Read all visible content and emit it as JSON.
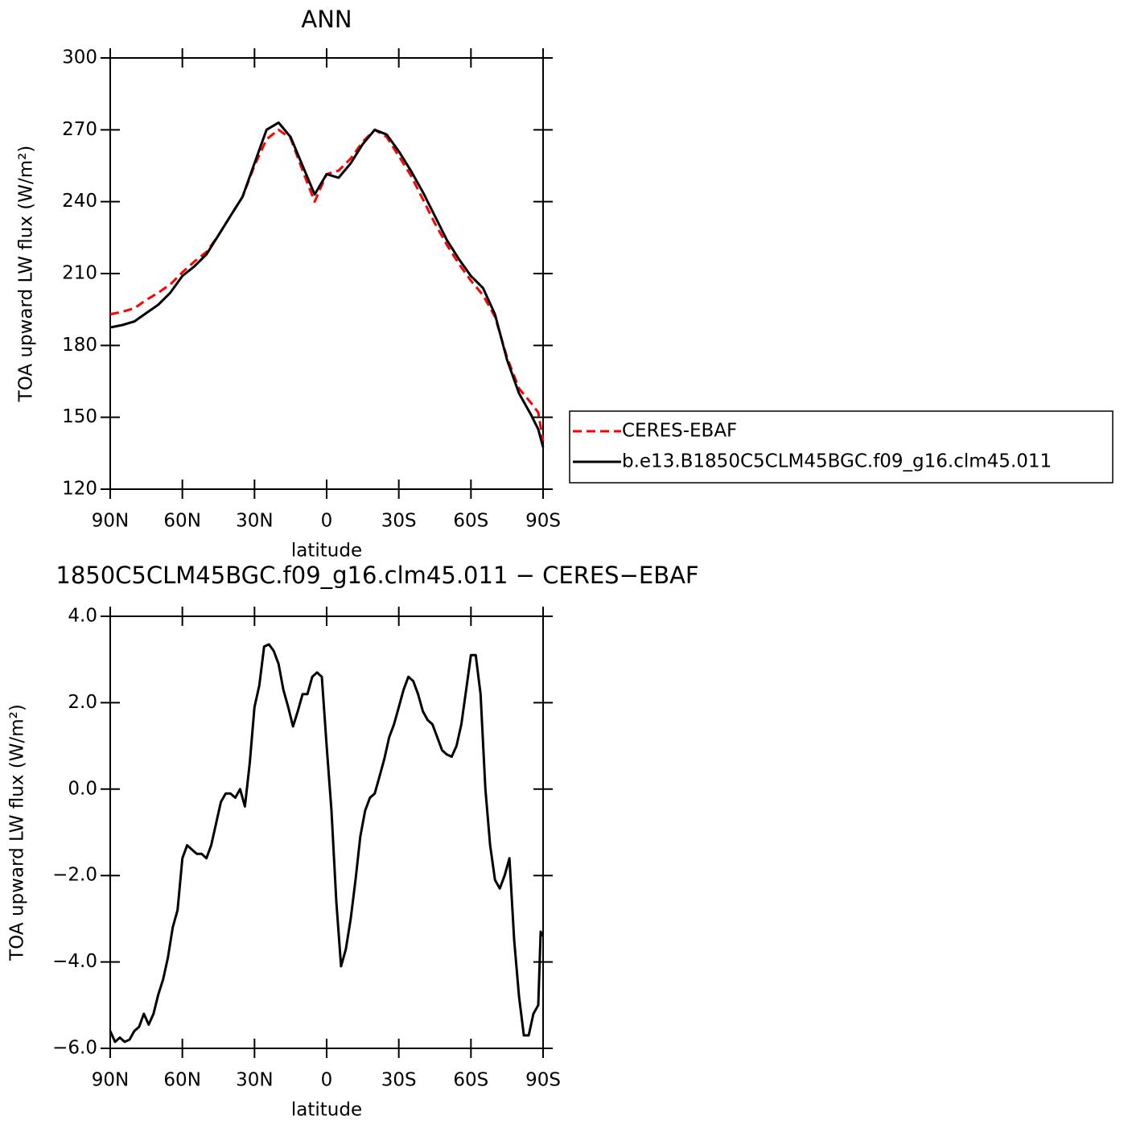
{
  "chart_data": [
    {
      "type": "line",
      "title": "ANN",
      "x_label": "latitude",
      "y_label": "TOA upward LW flux (W/m²)",
      "x": [
        90,
        85,
        80,
        75,
        70,
        65,
        60,
        55,
        50,
        45,
        40,
        35,
        30,
        25,
        20,
        15,
        10,
        5,
        0,
        -5,
        -10,
        -15,
        -20,
        -25,
        -30,
        -35,
        -40,
        -45,
        -50,
        -55,
        -60,
        -65,
        -70,
        -75,
        -80,
        -85,
        -88,
        -90
      ],
      "series": [
        {
          "name": "CERES-EBAF",
          "color": "#ff0000",
          "line_style": "dashed",
          "values": [
            193,
            194,
            195.5,
            199,
            202,
            205.5,
            210.5,
            215,
            219,
            226,
            234,
            242,
            255,
            266,
            270,
            266.5,
            253,
            240,
            251.5,
            253,
            258,
            265,
            270,
            267,
            259,
            251,
            241,
            231,
            222,
            214,
            207,
            201,
            192,
            175,
            162,
            156,
            152,
            140
          ]
        },
        {
          "name": "b.e13.B1850C5CLM45BGC.f09_g16.clm45.011",
          "color": "#000000",
          "line_style": "solid",
          "values": [
            187.5,
            188.5,
            190,
            193.5,
            197,
            202,
            209,
            213,
            218,
            226,
            234,
            242,
            256,
            270,
            273,
            267,
            255,
            243,
            251.5,
            250,
            256,
            264,
            270,
            268,
            261,
            253,
            244,
            234,
            224,
            216,
            209,
            204,
            193,
            174,
            160,
            151,
            145,
            137.5
          ]
        }
      ],
      "xlim": [
        90,
        -90
      ],
      "xticks": [
        {
          "value": 90,
          "label": "90N"
        },
        {
          "value": 60,
          "label": "60N"
        },
        {
          "value": 30,
          "label": "30N"
        },
        0,
        {
          "value": -30,
          "label": "30S"
        },
        {
          "value": -60,
          "label": "60S"
        },
        {
          "value": -90,
          "label": "90S"
        }
      ],
      "ylim": [
        120,
        300
      ],
      "yticks": [
        120,
        150,
        180,
        210,
        240,
        270,
        300
      ],
      "legend": "right"
    },
    {
      "type": "line",
      "title": "1850C5CLM45BGC.f09_g16.clm45.011 − CERES−EBAF",
      "x_label": "latitude",
      "y_label": "TOA upward LW flux (W/m²)",
      "x": [
        90,
        88,
        86,
        84,
        82,
        80,
        78,
        76,
        74,
        72,
        70,
        68,
        66,
        64,
        62,
        60,
        58,
        56,
        54,
        52,
        50,
        48,
        46,
        44,
        42,
        40,
        38,
        36,
        34,
        32,
        30,
        28,
        26,
        24,
        22,
        20,
        18,
        16,
        14,
        12,
        10,
        8,
        6,
        4,
        2,
        0,
        -2,
        -4,
        -6,
        -8,
        -10,
        -12,
        -14,
        -16,
        -18,
        -20,
        -22,
        -24,
        -26,
        -28,
        -30,
        -32,
        -34,
        -36,
        -38,
        -40,
        -42,
        -44,
        -46,
        -48,
        -50,
        -52,
        -54,
        -56,
        -58,
        -60,
        -62,
        -64,
        -66,
        -68,
        -70,
        -72,
        -74,
        -76,
        -78,
        -80,
        -82,
        -84,
        -86,
        -88,
        -89,
        -90
      ],
      "values": [
        -5.6,
        -5.85,
        -5.75,
        -5.85,
        -5.8,
        -5.6,
        -5.5,
        -5.2,
        -5.45,
        -5.2,
        -4.75,
        -4.4,
        -3.9,
        -3.2,
        -2.8,
        -1.6,
        -1.3,
        -1.4,
        -1.5,
        -1.5,
        -1.6,
        -1.3,
        -0.8,
        -0.3,
        -0.1,
        -0.1,
        -0.2,
        0.0,
        -0.4,
        0.6,
        1.9,
        2.4,
        3.3,
        3.35,
        3.2,
        2.9,
        2.3,
        1.9,
        1.45,
        1.8,
        2.2,
        2.2,
        2.6,
        2.7,
        2.6,
        1.0,
        -0.5,
        -2.6,
        -4.1,
        -3.7,
        -3.0,
        -2.1,
        -1.1,
        -0.5,
        -0.2,
        -0.1,
        0.3,
        0.7,
        1.2,
        1.5,
        1.9,
        2.3,
        2.6,
        2.5,
        2.2,
        1.8,
        1.6,
        1.5,
        1.2,
        0.9,
        0.8,
        0.75,
        1.0,
        1.5,
        2.3,
        3.1,
        3.1,
        2.2,
        0.0,
        -1.3,
        -2.1,
        -2.3,
        -2.0,
        -1.6,
        -3.5,
        -4.8,
        -5.7,
        -5.7,
        -5.2,
        -5.0,
        -3.3,
        -3.4
      ],
      "color": "#000000",
      "xlim": [
        90,
        -90
      ],
      "xticks": [
        {
          "value": 90,
          "label": "90N"
        },
        {
          "value": 60,
          "label": "60N"
        },
        {
          "value": 30,
          "label": "30N"
        },
        0,
        {
          "value": -30,
          "label": "30S"
        },
        {
          "value": -60,
          "label": "60S"
        },
        {
          "value": -90,
          "label": "90S"
        }
      ],
      "ylim": [
        -6,
        4
      ],
      "yticks": [
        {
          "value": -6,
          "label": "−6.0"
        },
        {
          "value": -4,
          "label": "−4.0"
        },
        {
          "value": -2,
          "label": "−2.0"
        },
        {
          "value": 0,
          "label": "0.0"
        },
        {
          "value": 2,
          "label": "2.0"
        },
        {
          "value": 4,
          "label": "4.0"
        }
      ]
    }
  ]
}
